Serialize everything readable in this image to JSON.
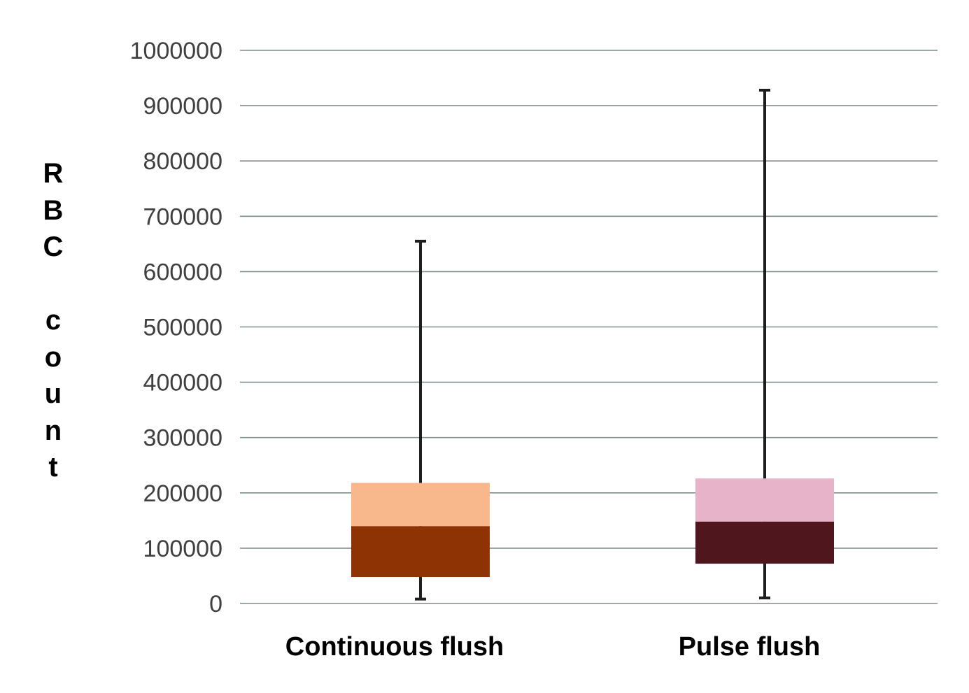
{
  "chart_data": {
    "type": "box",
    "ylabel": "RBC count",
    "ylim": [
      0,
      1000000
    ],
    "yticks": [
      0,
      100000,
      200000,
      300000,
      400000,
      500000,
      600000,
      700000,
      800000,
      900000,
      1000000
    ],
    "tick_labels": [
      "0",
      "100000",
      "200000",
      "300000",
      "400000",
      "500000",
      "600000",
      "700000",
      "800000",
      "900000",
      "1000000"
    ],
    "grid": true,
    "categories": [
      "Continuous flush",
      "Pulse flush"
    ],
    "boxes": [
      {
        "category": "Continuous flush",
        "min": 8000,
        "q1": 48000,
        "median": 140000,
        "q3": 218000,
        "max": 655000,
        "lower_color": "#8E3404",
        "upper_color": "#F8B88C"
      },
      {
        "category": "Pulse flush",
        "min": 10000,
        "q1": 72000,
        "median": 148000,
        "q3": 226000,
        "max": 928000,
        "lower_color": "#4F161E",
        "upper_color": "#E7B3C8"
      }
    ],
    "grid_color": "#7F8C8C",
    "whisker_color": "#1E1E1E"
  }
}
